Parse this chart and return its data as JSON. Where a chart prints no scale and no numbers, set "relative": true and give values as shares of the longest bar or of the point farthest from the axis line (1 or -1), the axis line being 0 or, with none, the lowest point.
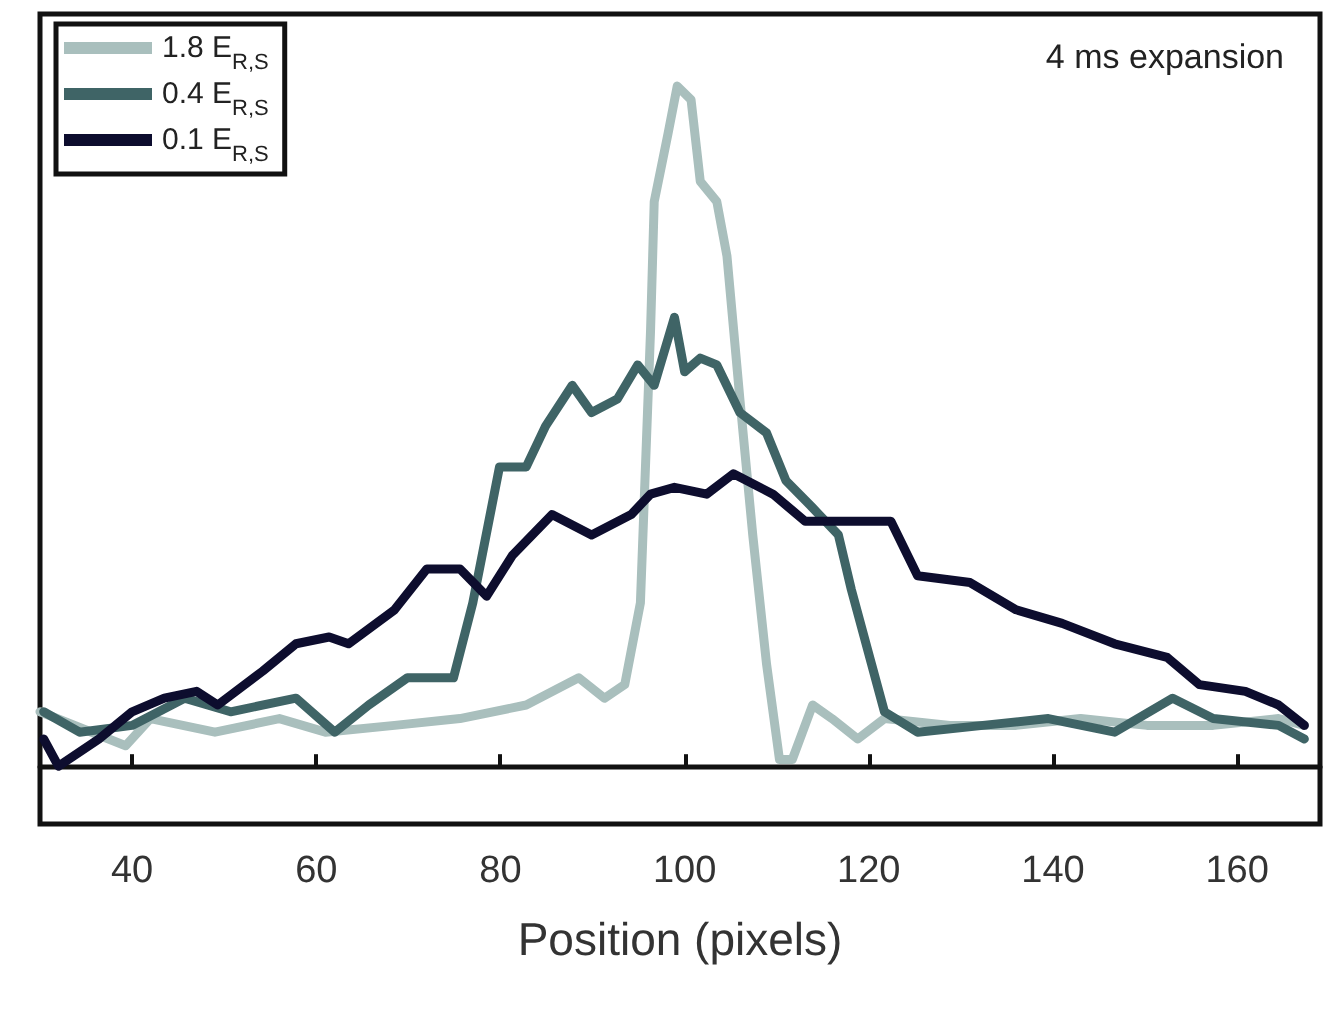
{
  "chart_data": {
    "type": "line",
    "xlabel": "Position (pixels)",
    "annotations": [
      "4 ms expansion"
    ],
    "relative": true,
    "xlim": [
      30,
      169
    ],
    "xticks": [
      40,
      60,
      80,
      100,
      120,
      140,
      160
    ],
    "grid": false,
    "legend": "top left",
    "marker": "none",
    "line_style": "solid",
    "series": [
      {
        "name": "1.8 E$_{R,S}$",
        "color": "#a9bfbd",
        "x": [
          30,
          39.3,
          42,
          49,
          56,
          61,
          68.5,
          75.6,
          82.8,
          88.5,
          91.3,
          93.5,
          95.2,
          96.3,
          96.7,
          98.2,
          99.2,
          100.7,
          101.7,
          103.5,
          104.6,
          106,
          107.4,
          108.9,
          110.3,
          111.7,
          113.9,
          116,
          118.8,
          121.7,
          128.8,
          136,
          143,
          150.2,
          157.4,
          164.5,
          167.3
        ],
        "values": [
          0.08,
          0.03,
          0.07,
          0.05,
          0.07,
          0.05,
          0.06,
          0.07,
          0.09,
          0.13,
          0.1,
          0.12,
          0.24,
          0.64,
          0.83,
          0.93,
          1,
          0.98,
          0.86,
          0.83,
          0.75,
          0.54,
          0.34,
          0.15,
          0.01,
          0.01,
          0.09,
          0.07,
          0.04,
          0.07,
          0.06,
          0.06,
          0.07,
          0.06,
          0.06,
          0.07,
          0.06
        ]
      },
      {
        "name": "0.4 E$_{R,S}$",
        "color": "#3f6466",
        "x": [
          30.4,
          34.3,
          40,
          45.7,
          50.7,
          57.8,
          62,
          65.7,
          69.9,
          74.9,
          77,
          79.9,
          82.8,
          84.9,
          87.8,
          89.9,
          92.7,
          94.9,
          96.7,
          98.9,
          100,
          101.7,
          103.5,
          106,
          108.9,
          111,
          113.9,
          116.7,
          118.1,
          120.3,
          121.7,
          125.3,
          132.4,
          139.5,
          146.7,
          153,
          157.4,
          164.5,
          167.3
        ],
        "values": [
          0.08,
          0.05,
          0.06,
          0.1,
          0.08,
          0.1,
          0.05,
          0.09,
          0.13,
          0.13,
          0.24,
          0.44,
          0.44,
          0.5,
          0.56,
          0.52,
          0.54,
          0.59,
          0.56,
          0.66,
          0.58,
          0.6,
          0.59,
          0.52,
          0.49,
          0.42,
          0.38,
          0.34,
          0.26,
          0.15,
          0.08,
          0.05,
          0.06,
          0.07,
          0.05,
          0.1,
          0.07,
          0.06,
          0.04
        ]
      },
      {
        "name": "0.1 E$_{R,S}$",
        "color": "#0d0d2e",
        "x": [
          30.4,
          32,
          36.4,
          40,
          43.5,
          47,
          49.3,
          54.2,
          57.8,
          61.4,
          63.5,
          68.5,
          72,
          75.6,
          78.5,
          81.3,
          85.6,
          89.9,
          94.2,
          96.3,
          98.9,
          102.4,
          105.3,
          109.6,
          113.1,
          118.1,
          122.4,
          125.3,
          131,
          136,
          141,
          146.7,
          152.4,
          155.9,
          160.9,
          164.5,
          167.3
        ],
        "values": [
          0.04,
          0,
          0.04,
          0.08,
          0.1,
          0.11,
          0.09,
          0.14,
          0.18,
          0.19,
          0.18,
          0.23,
          0.29,
          0.29,
          0.25,
          0.31,
          0.37,
          0.34,
          0.37,
          0.4,
          0.41,
          0.4,
          0.43,
          0.4,
          0.36,
          0.36,
          0.36,
          0.28,
          0.27,
          0.23,
          0.21,
          0.18,
          0.16,
          0.12,
          0.11,
          0.09,
          0.06
        ]
      }
    ]
  }
}
